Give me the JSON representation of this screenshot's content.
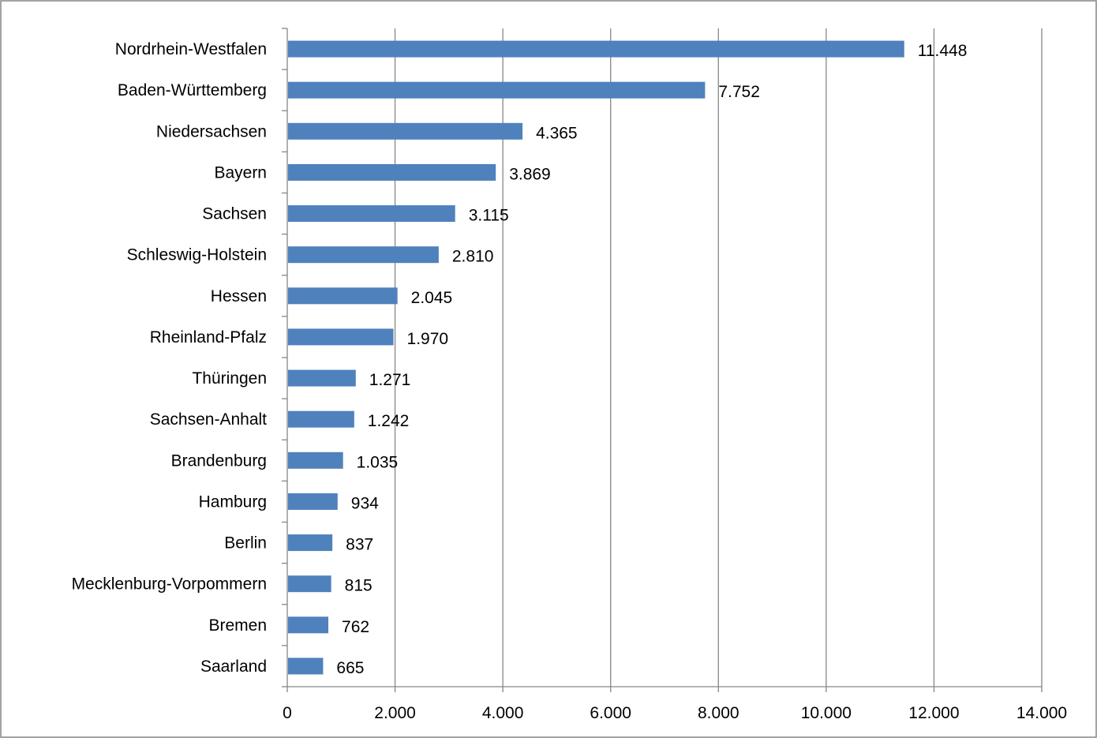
{
  "chart_data": {
    "type": "bar",
    "orientation": "horizontal",
    "categories": [
      "Nordrhein-Westfalen",
      "Baden-Württemberg",
      "Niedersachsen",
      "Bayern",
      "Sachsen",
      "Schleswig-Holstein",
      "Hessen",
      "Rheinland-Pfalz",
      "Thüringen",
      "Sachsen-Anhalt",
      "Brandenburg",
      "Hamburg",
      "Berlin",
      "Mecklenburg-Vorpommern",
      "Bremen",
      "Saarland"
    ],
    "values": [
      11448,
      7752,
      4365,
      3869,
      3115,
      2810,
      2045,
      1970,
      1271,
      1242,
      1035,
      934,
      837,
      815,
      762,
      665
    ],
    "value_labels": [
      "11.448",
      "7.752",
      "4.365",
      "3.869",
      "3.115",
      "2.810",
      "2.045",
      "1.970",
      "1.271",
      "1.242",
      "1.035",
      "934",
      "837",
      "815",
      "762",
      "665"
    ],
    "x_ticks": [
      0,
      2000,
      4000,
      6000,
      8000,
      10000,
      12000,
      14000
    ],
    "x_tick_labels": [
      "0",
      "2.000",
      "4.000",
      "6.000",
      "8.000",
      "10.000",
      "12.000",
      "14.000"
    ],
    "xlim": [
      0,
      14000
    ],
    "title": "",
    "xlabel": "",
    "ylabel": "",
    "grid": "vertical",
    "legend": "none",
    "colors": {
      "bar": "#4F81BD",
      "grid": "#868686",
      "axis": "#868686",
      "frame": "#868686"
    }
  }
}
